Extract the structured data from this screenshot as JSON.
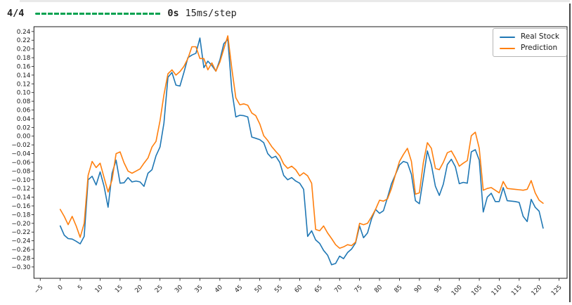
{
  "progress": {
    "step_count": "4/4",
    "time": "0s",
    "rate": "15ms/step",
    "bar_color": "#00a250"
  },
  "window": {
    "background": "#ffffff",
    "edge_color": "#434343"
  },
  "chart_data": {
    "type": "line",
    "title": "",
    "xlabel": "",
    "ylabel": "",
    "grid": false,
    "legend_position": "upper right",
    "xlim": [
      -6.58,
      127.0
    ],
    "ylim": [
      -0.326,
      0.251
    ],
    "x_tick_values": [
      -5,
      0,
      5,
      10,
      15,
      20,
      25,
      30,
      35,
      40,
      45,
      50,
      55,
      60,
      65,
      70,
      75,
      80,
      85,
      90,
      95,
      100,
      105,
      110,
      115,
      120,
      125
    ],
    "x_tick_labels": [
      "−5",
      "0",
      "5",
      "10",
      "15",
      "20",
      "25",
      "30",
      "35",
      "40",
      "45",
      "50",
      "55",
      "60",
      "65",
      "70",
      "75",
      "80",
      "85",
      "90",
      "95",
      "100",
      "105",
      "110",
      "115",
      "120",
      "125"
    ],
    "y_tick_values": [
      0.24,
      0.22,
      0.2,
      0.18,
      0.16,
      0.14,
      0.12,
      0.1,
      0.08,
      0.06,
      0.04,
      0.02,
      0.0,
      -0.02,
      -0.04,
      -0.06,
      -0.08,
      -0.1,
      -0.12,
      -0.14,
      -0.16,
      -0.18,
      -0.2,
      -0.22,
      -0.24,
      -0.26,
      -0.28,
      -0.3
    ],
    "y_tick_labels": [
      "0.24",
      "0.22",
      "0.20",
      "0.18",
      "0.16",
      "0.14",
      "0.12",
      "0.10",
      "0.08",
      "0.06",
      "0.04",
      "0.02",
      "0.00",
      "−0.02",
      "−0.04",
      "−0.06",
      "−0.08",
      "−0.10",
      "−0.12",
      "−0.14",
      "−0.16",
      "−0.18",
      "−0.20",
      "−0.22",
      "−0.24",
      "−0.26",
      "−0.28",
      "−0.30"
    ],
    "series": [
      {
        "name": "Real Stock",
        "color": "#1f77b4",
        "values": [
          -0.206,
          -0.227,
          -0.235,
          -0.236,
          -0.241,
          -0.247,
          -0.23,
          -0.1,
          -0.092,
          -0.112,
          -0.082,
          -0.115,
          -0.163,
          -0.085,
          -0.055,
          -0.108,
          -0.107,
          -0.095,
          -0.105,
          -0.103,
          -0.105,
          -0.115,
          -0.085,
          -0.077,
          -0.045,
          -0.025,
          0.03,
          0.135,
          0.146,
          0.117,
          0.115,
          0.146,
          0.18,
          0.186,
          0.19,
          0.225,
          0.157,
          0.172,
          0.162,
          0.149,
          0.175,
          0.212,
          0.222,
          0.105,
          0.044,
          0.048,
          0.047,
          0.044,
          -0.002,
          -0.005,
          -0.008,
          -0.015,
          -0.04,
          -0.05,
          -0.046,
          -0.06,
          -0.09,
          -0.1,
          -0.095,
          -0.103,
          -0.108,
          -0.122,
          -0.23,
          -0.217,
          -0.238,
          -0.246,
          -0.262,
          -0.273,
          -0.295,
          -0.292,
          -0.275,
          -0.281,
          -0.267,
          -0.259,
          -0.245,
          -0.206,
          -0.233,
          -0.222,
          -0.19,
          -0.168,
          -0.177,
          -0.171,
          -0.141,
          -0.109,
          -0.088,
          -0.066,
          -0.058,
          -0.061,
          -0.088,
          -0.148,
          -0.155,
          -0.095,
          -0.034,
          -0.066,
          -0.115,
          -0.136,
          -0.11,
          -0.065,
          -0.053,
          -0.07,
          -0.109,
          -0.106,
          -0.108,
          -0.036,
          -0.031,
          -0.055,
          -0.174,
          -0.14,
          -0.131,
          -0.15,
          -0.15,
          -0.118,
          -0.148,
          -0.149,
          -0.15,
          -0.152,
          -0.184,
          -0.196,
          -0.145,
          -0.163,
          -0.172,
          -0.211
        ]
      },
      {
        "name": "Prediction",
        "color": "#ff7f0e",
        "values": [
          -0.168,
          -0.184,
          -0.203,
          -0.184,
          -0.206,
          -0.232,
          -0.2,
          -0.09,
          -0.058,
          -0.072,
          -0.062,
          -0.095,
          -0.128,
          -0.1,
          -0.04,
          -0.036,
          -0.061,
          -0.08,
          -0.085,
          -0.08,
          -0.075,
          -0.062,
          -0.05,
          -0.025,
          -0.012,
          0.035,
          0.095,
          0.143,
          0.152,
          0.14,
          0.148,
          0.16,
          0.178,
          0.205,
          0.205,
          0.178,
          0.178,
          0.152,
          0.168,
          0.149,
          0.17,
          0.2,
          0.23,
          0.155,
          0.088,
          0.072,
          0.074,
          0.071,
          0.053,
          0.047,
          0.028,
          0.001,
          -0.01,
          -0.024,
          -0.035,
          -0.045,
          -0.064,
          -0.074,
          -0.069,
          -0.077,
          -0.091,
          -0.084,
          -0.091,
          -0.108,
          -0.214,
          -0.217,
          -0.206,
          -0.222,
          -0.235,
          -0.249,
          -0.257,
          -0.254,
          -0.249,
          -0.251,
          -0.243,
          -0.2,
          -0.203,
          -0.2,
          -0.185,
          -0.168,
          -0.147,
          -0.149,
          -0.144,
          -0.12,
          -0.088,
          -0.058,
          -0.042,
          -0.028,
          -0.058,
          -0.133,
          -0.13,
          -0.06,
          -0.015,
          -0.028,
          -0.074,
          -0.077,
          -0.06,
          -0.038,
          -0.034,
          -0.05,
          -0.069,
          -0.062,
          -0.056,
          0.001,
          0.009,
          -0.028,
          -0.124,
          -0.12,
          -0.118,
          -0.124,
          -0.13,
          -0.104,
          -0.12,
          -0.121,
          -0.122,
          -0.123,
          -0.124,
          -0.122,
          -0.102,
          -0.13,
          -0.147,
          -0.154
        ]
      }
    ]
  }
}
